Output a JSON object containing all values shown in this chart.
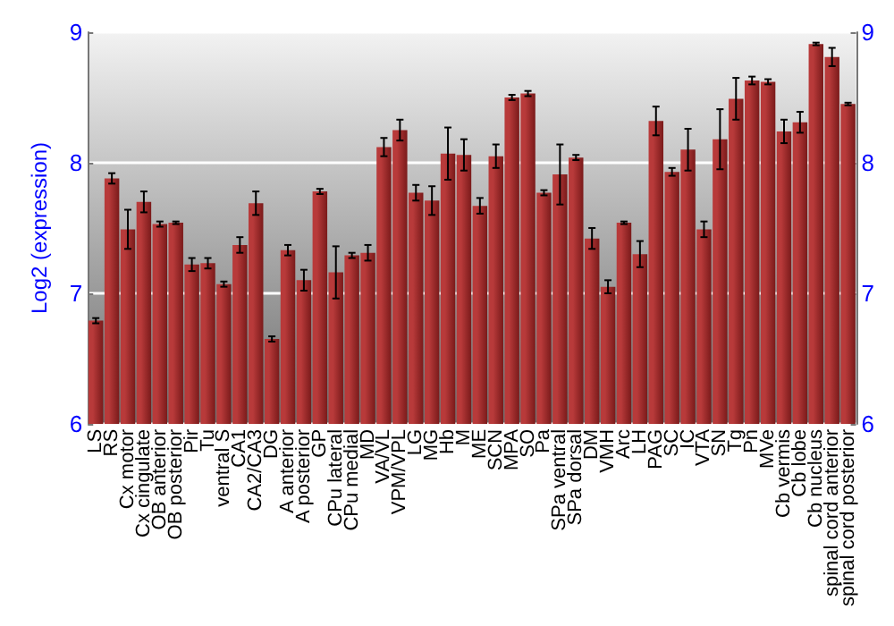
{
  "chart_data": {
    "type": "bar",
    "ylabel": "Log2 (expression)",
    "categories": [
      "LS",
      "RS",
      "Cx motor",
      "Cx cingulate",
      "OB anterior",
      "OB posterior",
      "Pir",
      "Tu",
      "ventral S",
      "CA1",
      "CA2/CA3",
      "DG",
      "A anterior",
      "A posterior",
      "GP",
      "CPu lateral",
      "CPu medial",
      "MD",
      "VA/VL",
      "VPM/VPL",
      "LG",
      "MG",
      "Hb",
      "M",
      "ME",
      "SCN",
      "MPA",
      "SO",
      "Pa",
      "SPa ventral",
      "SPa dorsal",
      "DM",
      "VMH",
      "Arc",
      "LH",
      "PAG",
      "SC",
      "IC",
      "VTA",
      "SN",
      "Tg",
      "Pn",
      "MVe",
      "Cb vermis",
      "Cb lobe",
      "Cb nucleus",
      "spinal cord anterior",
      "spinal cord posterior"
    ],
    "series": [
      {
        "color": "#b83a3a",
        "values": [
          6.79,
          7.88,
          7.49,
          7.7,
          7.53,
          7.54,
          7.22,
          7.23,
          7.07,
          7.37,
          7.69,
          6.65,
          7.33,
          7.1,
          7.78,
          7.16,
          7.29,
          7.31,
          8.12,
          8.25,
          7.77,
          7.71,
          8.07,
          8.06,
          7.67,
          8.05,
          8.5,
          8.53,
          7.77,
          7.91,
          8.04,
          7.42,
          7.05,
          7.54,
          7.3,
          8.32,
          7.93,
          8.1,
          7.49,
          8.18,
          8.49,
          8.63,
          8.62,
          8.24,
          8.31,
          8.91,
          8.81,
          8.45
        ],
        "errors": [
          0.02,
          0.04,
          0.15,
          0.08,
          0.02,
          0.01,
          0.05,
          0.04,
          0.02,
          0.06,
          0.09,
          0.02,
          0.04,
          0.08,
          0.02,
          0.2,
          0.02,
          0.06,
          0.07,
          0.08,
          0.06,
          0.11,
          0.2,
          0.12,
          0.06,
          0.09,
          0.02,
          0.02,
          0.02,
          0.23,
          0.02,
          0.08,
          0.05,
          0.01,
          0.1,
          0.11,
          0.03,
          0.16,
          0.06,
          0.23,
          0.16,
          0.03,
          0.02,
          0.09,
          0.08,
          0.01,
          0.07,
          0.01
        ]
      }
    ],
    "ylim": [
      6,
      9
    ],
    "yticks": [
      6,
      7,
      8,
      9
    ],
    "y2lim": [
      6,
      9
    ],
    "y2ticks": [
      6,
      7,
      8,
      9
    ],
    "grid": "y"
  }
}
